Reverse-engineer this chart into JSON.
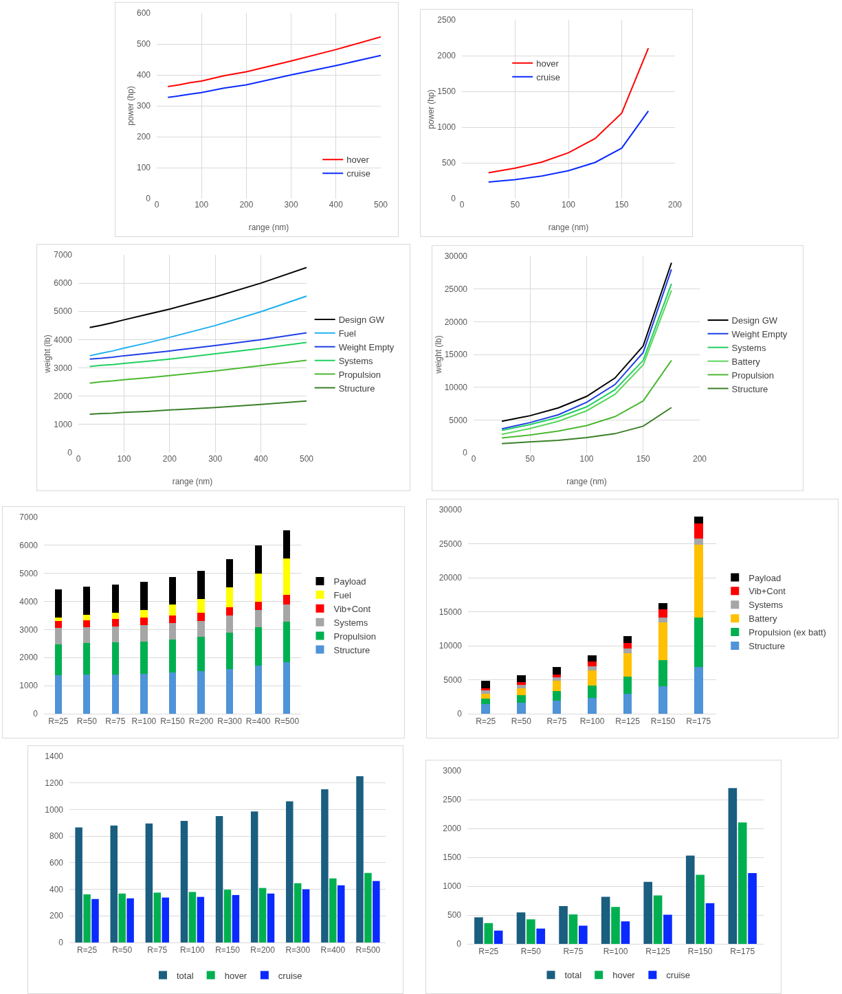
{
  "chart_data": [
    {
      "type": "line",
      "xlabel": "range (nm)",
      "ylabel": "power (hp)",
      "x": [
        25,
        50,
        75,
        100,
        150,
        200,
        300,
        400,
        500
      ],
      "xlim": [
        0,
        500
      ],
      "xticks": [
        0,
        100,
        200,
        300,
        400,
        500
      ],
      "ylim": [
        0,
        600
      ],
      "yticks": [
        0,
        100,
        200,
        300,
        400,
        500,
        600
      ],
      "grid": true,
      "legend": "bottom right",
      "series": [
        {
          "name": "hover",
          "color": "#ff0000",
          "values": [
            362,
            368,
            375,
            380,
            397,
            410,
            445,
            482,
            523
          ]
        },
        {
          "name": "cruise",
          "color": "#0a2aff",
          "values": [
            327,
            332,
            338,
            343,
            357,
            368,
            400,
            430,
            463
          ]
        }
      ]
    },
    {
      "type": "line",
      "xlabel": "range (nm)",
      "ylabel": "power (hp)",
      "x": [
        25,
        50,
        75,
        100,
        125,
        150,
        175
      ],
      "xlim": [
        0,
        200
      ],
      "xticks": [
        0,
        50,
        100,
        150,
        200
      ],
      "ylim": [
        0,
        2500
      ],
      "yticks": [
        0,
        500,
        1000,
        1500,
        2000,
        2500
      ],
      "grid": true,
      "legend": "left",
      "series": [
        {
          "name": "hover",
          "color": "#ff0000",
          "values": [
            360,
            425,
            510,
            640,
            840,
            1195,
            2105
          ]
        },
        {
          "name": "cruise",
          "color": "#0a2aff",
          "values": [
            230,
            265,
            315,
            390,
            505,
            705,
            1225
          ]
        }
      ]
    },
    {
      "type": "line",
      "xlabel": "range (nm)",
      "ylabel": "weight (lb)",
      "x": [
        25,
        50,
        75,
        100,
        150,
        200,
        300,
        400,
        500
      ],
      "xlim": [
        0,
        500
      ],
      "xticks": [
        0,
        100,
        200,
        300,
        400,
        500
      ],
      "ylim": [
        0,
        7000
      ],
      "yticks": [
        0,
        1000,
        2000,
        3000,
        4000,
        5000,
        6000,
        7000
      ],
      "grid": true,
      "legend": "right",
      "series": [
        {
          "name": "Design GW",
          "color": "#000000",
          "values": [
            4430,
            4510,
            4600,
            4700,
            4890,
            5080,
            5510,
            6000,
            6550
          ]
        },
        {
          "name": "Fuel",
          "color": "#1fb0f0",
          "values": [
            3430,
            3520,
            3600,
            3700,
            3880,
            4080,
            4500,
            4990,
            5540
          ]
        },
        {
          "name": "Weight Empty",
          "color": "#1f3fe6",
          "values": [
            3310,
            3340,
            3380,
            3430,
            3510,
            3600,
            3790,
            4000,
            4240
          ]
        },
        {
          "name": "Systems",
          "color": "#1fd060",
          "values": [
            3050,
            3090,
            3120,
            3160,
            3230,
            3310,
            3500,
            3690,
            3900
          ]
        },
        {
          "name": "Propulsion",
          "color": "#4cb830",
          "values": [
            2460,
            2510,
            2540,
            2580,
            2650,
            2730,
            2890,
            3080,
            3270
          ]
        },
        {
          "name": "Structure",
          "color": "#3a7f28",
          "values": [
            1360,
            1385,
            1400,
            1425,
            1460,
            1510,
            1600,
            1710,
            1830
          ]
        }
      ]
    },
    {
      "type": "line",
      "xlabel": "range (nm)",
      "ylabel": "weight (lb)",
      "x": [
        25,
        50,
        75,
        100,
        125,
        150,
        175
      ],
      "xlim": [
        0,
        200
      ],
      "xticks": [
        0,
        50,
        100,
        150,
        200
      ],
      "ylim": [
        0,
        30000
      ],
      "yticks": [
        0,
        5000,
        10000,
        15000,
        20000,
        25000,
        30000
      ],
      "grid": true,
      "legend": "right",
      "series": [
        {
          "name": "Design GW",
          "color": "#000000",
          "values": [
            4800,
            5650,
            6850,
            8600,
            11400,
            16300,
            29000
          ]
        },
        {
          "name": "Weight Empty",
          "color": "#1f3fe6",
          "values": [
            3650,
            4600,
            5800,
            7700,
            10400,
            15300,
            28000
          ]
        },
        {
          "name": "Systems",
          "color": "#1fd060",
          "values": [
            3400,
            4300,
            5400,
            7000,
            9600,
            14100,
            25800
          ]
        },
        {
          "name": "Battery",
          "color": "#5ad65a",
          "values": [
            2800,
            3700,
            4800,
            6400,
            8900,
            13400,
            24800
          ]
        },
        {
          "name": "Propulsion",
          "color": "#4cb830",
          "values": [
            2250,
            2700,
            3300,
            4150,
            5500,
            7900,
            14100
          ]
        },
        {
          "name": "Structure",
          "color": "#3a7f28",
          "values": [
            1400,
            1650,
            1900,
            2300,
            2900,
            4050,
            6900
          ]
        }
      ]
    },
    {
      "type": "bar",
      "stacked": true,
      "categories": [
        "R=25",
        "R=50",
        "R=75",
        "R=100",
        "R=150",
        "R=200",
        "R=300",
        "R=400",
        "R=500"
      ],
      "ylim": [
        0,
        7000
      ],
      "yticks": [
        0,
        1000,
        2000,
        3000,
        4000,
        5000,
        6000,
        7000
      ],
      "grid": "y",
      "legend": "right",
      "series": [
        {
          "name": "Structure",
          "color": "#4f93d8",
          "values": [
            1360,
            1385,
            1400,
            1425,
            1460,
            1510,
            1600,
            1710,
            1830
          ]
        },
        {
          "name": "Propulsion",
          "color": "#00b050",
          "values": [
            1100,
            1125,
            1140,
            1155,
            1190,
            1220,
            1290,
            1370,
            1440
          ]
        },
        {
          "name": "Systems",
          "color": "#a6a6a6",
          "values": [
            590,
            580,
            580,
            580,
            580,
            580,
            610,
            610,
            630
          ]
        },
        {
          "name": "Vib+Cont",
          "color": "#ff0000",
          "values": [
            260,
            250,
            260,
            270,
            280,
            290,
            290,
            310,
            330
          ]
        },
        {
          "name": "Fuel",
          "color": "#ffff00",
          "values": [
            110,
            180,
            220,
            270,
            370,
            480,
            710,
            990,
            1310
          ]
        },
        {
          "name": "Payload",
          "color": "#000000",
          "values": [
            1000,
            1000,
            1000,
            1000,
            1000,
            1000,
            1000,
            1000,
            1000
          ]
        }
      ]
    },
    {
      "type": "bar",
      "stacked": true,
      "categories": [
        "R=25",
        "R=50",
        "R=75",
        "R=100",
        "R=125",
        "R=150",
        "R=175"
      ],
      "ylim": [
        0,
        30000
      ],
      "yticks": [
        0,
        5000,
        10000,
        15000,
        20000,
        25000,
        30000
      ],
      "grid": "y",
      "legend": "right",
      "series": [
        {
          "name": "Structure",
          "color": "#4f93d8",
          "values": [
            1400,
            1650,
            1900,
            2300,
            2900,
            4050,
            6900
          ]
        },
        {
          "name": "Propulsion (ex batt)",
          "color": "#00b050",
          "values": [
            850,
            1050,
            1400,
            1850,
            2600,
            3850,
            7200
          ]
        },
        {
          "name": "Battery",
          "color": "#ffc000",
          "values": [
            650,
            1000,
            1500,
            2250,
            3400,
            5500,
            10700
          ]
        },
        {
          "name": "Systems",
          "color": "#a6a6a6",
          "values": [
            500,
            500,
            600,
            600,
            700,
            700,
            1000
          ]
        },
        {
          "name": "Vib+Cont",
          "color": "#ff0000",
          "values": [
            300,
            400,
            400,
            700,
            800,
            1300,
            2200
          ]
        },
        {
          "name": "Payload",
          "color": "#000000",
          "values": [
            1100,
            1050,
            1050,
            900,
            1000,
            900,
            1000
          ]
        }
      ]
    },
    {
      "type": "bar",
      "categories": [
        "R=25",
        "R=50",
        "R=75",
        "R=100",
        "R=150",
        "R=200",
        "R=300",
        "R=400",
        "R=500"
      ],
      "ylim": [
        0,
        1400
      ],
      "yticks": [
        0,
        200,
        400,
        600,
        800,
        1000,
        1200,
        1400
      ],
      "grid": "y",
      "legend": "bottom",
      "series": [
        {
          "name": "total",
          "color": "#1a5e80",
          "values": [
            865,
            880,
            895,
            915,
            950,
            985,
            1062,
            1152,
            1250
          ]
        },
        {
          "name": "hover",
          "color": "#00b050",
          "values": [
            362,
            368,
            375,
            380,
            397,
            410,
            445,
            482,
            523
          ]
        },
        {
          "name": "cruise",
          "color": "#0a2aff",
          "values": [
            327,
            332,
            338,
            343,
            357,
            368,
            400,
            430,
            463
          ]
        }
      ]
    },
    {
      "type": "bar",
      "categories": [
        "R=25",
        "R=50",
        "R=75",
        "R=100",
        "R=125",
        "R=150",
        "R=175"
      ],
      "ylim": [
        0,
        3000
      ],
      "yticks": [
        0,
        500,
        1000,
        1500,
        2000,
        2500,
        3000
      ],
      "grid": "y",
      "legend": "bottom",
      "series": [
        {
          "name": "total",
          "color": "#1a5e80",
          "values": [
            460,
            545,
            655,
            815,
            1075,
            1530,
            2700
          ]
        },
        {
          "name": "hover",
          "color": "#00b050",
          "values": [
            360,
            425,
            510,
            640,
            840,
            1195,
            2105
          ]
        },
        {
          "name": "cruise",
          "color": "#0a2aff",
          "values": [
            230,
            265,
            315,
            390,
            505,
            705,
            1225
          ]
        }
      ]
    }
  ]
}
